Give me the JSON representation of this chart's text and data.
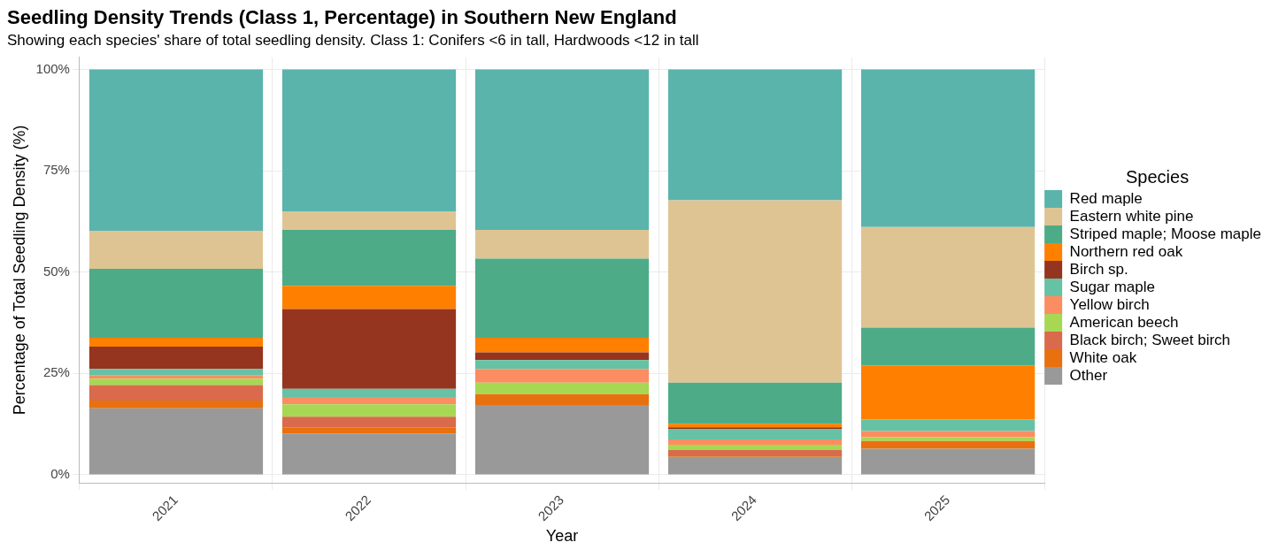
{
  "chart_data": {
    "type": "bar",
    "title": "Seedling Density Trends (Class 1, Percentage) in Southern New England",
    "subtitle": "Showing each species' share of total seedling density. Class 1: Conifers <6 in tall, Hardwoods <12 in tall",
    "xlabel": "Year",
    "ylabel": "Percentage of Total Seedling Density (%)",
    "legend_title": "Species",
    "categories": [
      "2021",
      "2022",
      "2023",
      "2024",
      "2025"
    ],
    "stacked": true,
    "ylim": [
      -2,
      103
    ],
    "yticks": [
      {
        "value": 0,
        "label": "0%"
      },
      {
        "value": 25,
        "label": "25%"
      },
      {
        "value": 50,
        "label": "50%"
      },
      {
        "value": 75,
        "label": "75%"
      },
      {
        "value": 100,
        "label": "100%"
      }
    ],
    "grid": true,
    "legend": "right",
    "series": [
      {
        "name": "Other",
        "color": "#999999",
        "values": [
          16.4,
          10.2,
          17.2,
          4.4,
          6.4
        ]
      },
      {
        "name": "White oak",
        "color": "#e8700f",
        "values": [
          1.9,
          1.5,
          2.7,
          0.4,
          1.9
        ]
      },
      {
        "name": "Black birch; Sweet birch",
        "color": "#d96b4c",
        "values": [
          3.8,
          2.6,
          0,
          1.3,
          0
        ]
      },
      {
        "name": "American beech",
        "color": "#a6d854",
        "values": [
          1.6,
          3.1,
          2.8,
          1.3,
          1.0
        ]
      },
      {
        "name": "Yellow birch",
        "color": "#fc8d62",
        "values": [
          0.9,
          1.8,
          3.4,
          1.3,
          1.5
        ]
      },
      {
        "name": "Sugar maple",
        "color": "#66c2a5",
        "values": [
          1.5,
          2.0,
          2.2,
          2.6,
          2.8
        ]
      },
      {
        "name": "Birch sp.",
        "color": "#953520",
        "values": [
          5.5,
          19.7,
          1.9,
          0.4,
          0
        ]
      },
      {
        "name": "Northern red oak",
        "color": "#ff8000",
        "values": [
          2.2,
          5.7,
          3.6,
          0.9,
          13.4
        ]
      },
      {
        "name": "Striped maple; Moose maple",
        "color": "#4dac87",
        "values": [
          17.0,
          13.8,
          19.5,
          10.1,
          9.3
        ]
      },
      {
        "name": "Eastern white pine",
        "color": "#dfc493",
        "values": [
          9.4,
          4.6,
          7.1,
          45.0,
          24.8
        ]
      },
      {
        "name": "Red maple",
        "color": "#5ab4ac",
        "values": [
          39.8,
          35.0,
          39.6,
          32.3,
          38.9
        ]
      }
    ]
  }
}
